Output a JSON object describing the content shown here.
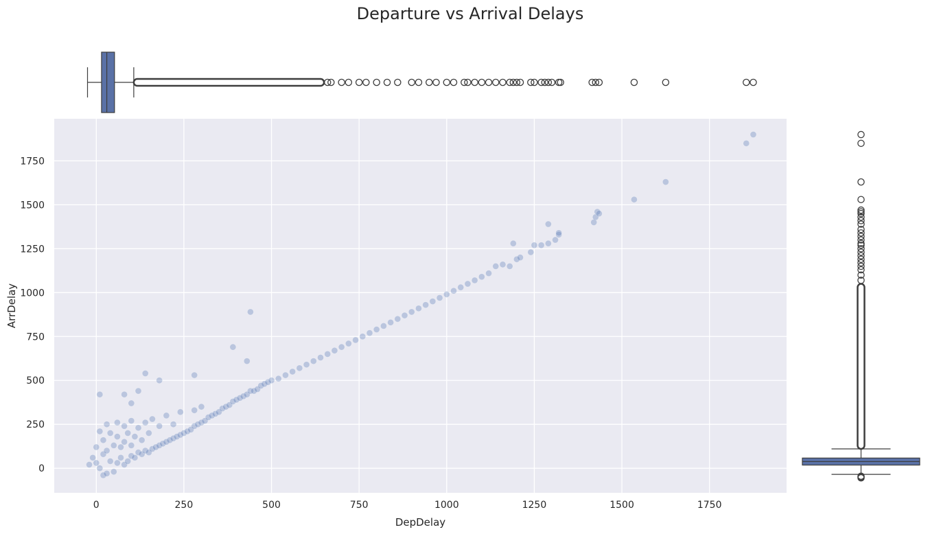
{
  "figure": {
    "title": "Departure vs Arrival Delays"
  },
  "chart_data": [
    {
      "type": "scatter",
      "panel": "joint",
      "title": "",
      "xlabel": "DepDelay",
      "ylabel": "ArrDelay",
      "xlim": [
        -120,
        1970
      ],
      "ylim": [
        -140,
        1990
      ],
      "x_ticks": [
        0,
        250,
        500,
        750,
        1000,
        1250,
        1500,
        1750
      ],
      "y_ticks": [
        0,
        250,
        500,
        750,
        1000,
        1250,
        1500,
        1750
      ],
      "grid": true,
      "background_color": "#eaeaf2",
      "point_color": "#4c72b0",
      "point_alpha": 0.3,
      "series": [
        {
          "points": [
            [
              -20,
              20
            ],
            [
              -10,
              60
            ],
            [
              0,
              30
            ],
            [
              0,
              120
            ],
            [
              10,
              0
            ],
            [
              10,
              210
            ],
            [
              20,
              -40
            ],
            [
              20,
              80
            ],
            [
              20,
              160
            ],
            [
              30,
              -30
            ],
            [
              30,
              100
            ],
            [
              30,
              250
            ],
            [
              40,
              40
            ],
            [
              40,
              200
            ],
            [
              50,
              -20
            ],
            [
              50,
              130
            ],
            [
              60,
              30
            ],
            [
              60,
              180
            ],
            [
              60,
              260
            ],
            [
              70,
              60
            ],
            [
              70,
              120
            ],
            [
              80,
              20
            ],
            [
              80,
              150
            ],
            [
              80,
              240
            ],
            [
              90,
              40
            ],
            [
              90,
              200
            ],
            [
              100,
              70
            ],
            [
              100,
              130
            ],
            [
              100,
              270
            ],
            [
              110,
              60
            ],
            [
              110,
              180
            ],
            [
              120,
              90
            ],
            [
              120,
              230
            ],
            [
              130,
              80
            ],
            [
              130,
              160
            ],
            [
              140,
              100
            ],
            [
              140,
              260
            ],
            [
              150,
              90
            ],
            [
              150,
              200
            ],
            [
              160,
              110
            ],
            [
              160,
              280
            ],
            [
              170,
              120
            ],
            [
              180,
              130
            ],
            [
              180,
              240
            ],
            [
              190,
              140
            ],
            [
              200,
              150
            ],
            [
              200,
              300
            ],
            [
              210,
              160
            ],
            [
              220,
              170
            ],
            [
              220,
              250
            ],
            [
              230,
              180
            ],
            [
              240,
              190
            ],
            [
              240,
              320
            ],
            [
              250,
              200
            ],
            [
              260,
              210
            ],
            [
              270,
              220
            ],
            [
              280,
              240
            ],
            [
              280,
              330
            ],
            [
              290,
              250
            ],
            [
              300,
              260
            ],
            [
              300,
              350
            ],
            [
              310,
              270
            ],
            [
              320,
              290
            ],
            [
              330,
              300
            ],
            [
              340,
              310
            ],
            [
              350,
              320
            ],
            [
              360,
              340
            ],
            [
              370,
              350
            ],
            [
              380,
              360
            ],
            [
              390,
              380
            ],
            [
              400,
              390
            ],
            [
              410,
              400
            ],
            [
              420,
              410
            ],
            [
              430,
              420
            ],
            [
              440,
              440
            ],
            [
              450,
              440
            ],
            [
              460,
              450
            ],
            [
              470,
              470
            ],
            [
              480,
              480
            ],
            [
              490,
              490
            ],
            [
              500,
              500
            ],
            [
              520,
              510
            ],
            [
              540,
              530
            ],
            [
              560,
              550
            ],
            [
              580,
              570
            ],
            [
              600,
              590
            ],
            [
              620,
              610
            ],
            [
              640,
              630
            ],
            [
              660,
              650
            ],
            [
              680,
              670
            ],
            [
              700,
              690
            ],
            [
              720,
              710
            ],
            [
              740,
              730
            ],
            [
              760,
              750
            ],
            [
              780,
              770
            ],
            [
              800,
              790
            ],
            [
              820,
              810
            ],
            [
              840,
              830
            ],
            [
              860,
              850
            ],
            [
              880,
              870
            ],
            [
              900,
              890
            ],
            [
              920,
              910
            ],
            [
              940,
              930
            ],
            [
              960,
              950
            ],
            [
              980,
              970
            ],
            [
              1000,
              990
            ],
            [
              1020,
              1010
            ],
            [
              1040,
              1030
            ],
            [
              1060,
              1050
            ],
            [
              1080,
              1070
            ],
            [
              1100,
              1090
            ],
            [
              1120,
              1110
            ],
            [
              1140,
              1150
            ],
            [
              1160,
              1160
            ],
            [
              1180,
              1150
            ],
            [
              1190,
              1280
            ],
            [
              1200,
              1190
            ],
            [
              1210,
              1200
            ],
            [
              1240,
              1230
            ],
            [
              1250,
              1270
            ],
            [
              1270,
              1270
            ],
            [
              1290,
              1280
            ],
            [
              1290,
              1390
            ],
            [
              1310,
              1300
            ],
            [
              1320,
              1330
            ],
            [
              1320,
              1340
            ],
            [
              1420,
              1400
            ],
            [
              1425,
              1430
            ],
            [
              1430,
              1460
            ],
            [
              1435,
              1450
            ],
            [
              1535,
              1530
            ],
            [
              1625,
              1630
            ],
            [
              1855,
              1850
            ],
            [
              1875,
              1900
            ],
            [
              10,
              420
            ],
            [
              80,
              420
            ],
            [
              140,
              540
            ],
            [
              180,
              500
            ],
            [
              280,
              530
            ],
            [
              390,
              690
            ],
            [
              430,
              610
            ],
            [
              440,
              890
            ],
            [
              120,
              440
            ],
            [
              100,
              370
            ]
          ]
        }
      ]
    },
    {
      "type": "box",
      "panel": "top-marginal",
      "orientation": "horizontal",
      "variable": "DepDelay",
      "title": "",
      "box_color": "#5a71a6",
      "stats": {
        "whisker_low": -25,
        "q1": 15,
        "median": 30,
        "q3": 52,
        "whisker_high": 107
      },
      "outlier_range": [
        107,
        650
      ],
      "outliers": [
        660,
        670,
        700,
        720,
        750,
        770,
        800,
        830,
        860,
        900,
        920,
        950,
        970,
        1000,
        1020,
        1050,
        1060,
        1080,
        1100,
        1120,
        1140,
        1160,
        1180,
        1190,
        1200,
        1210,
        1240,
        1250,
        1270,
        1280,
        1290,
        1300,
        1320,
        1325,
        1415,
        1425,
        1435,
        1535,
        1625,
        1855,
        1875
      ]
    },
    {
      "type": "box",
      "panel": "right-marginal",
      "orientation": "vertical",
      "variable": "ArrDelay",
      "title": "",
      "box_color": "#5a71a6",
      "stats": {
        "whisker_low": -35,
        "q1": 18,
        "median": 38,
        "q3": 58,
        "whisker_high": 110
      },
      "outlier_range": [
        110,
        1050
      ],
      "outliers": [
        -45,
        -50,
        -55,
        1070,
        1100,
        1130,
        1150,
        1170,
        1190,
        1210,
        1230,
        1250,
        1270,
        1280,
        1300,
        1320,
        1340,
        1360,
        1390,
        1410,
        1430,
        1450,
        1460,
        1470,
        1530,
        1630,
        1850,
        1900
      ]
    }
  ]
}
